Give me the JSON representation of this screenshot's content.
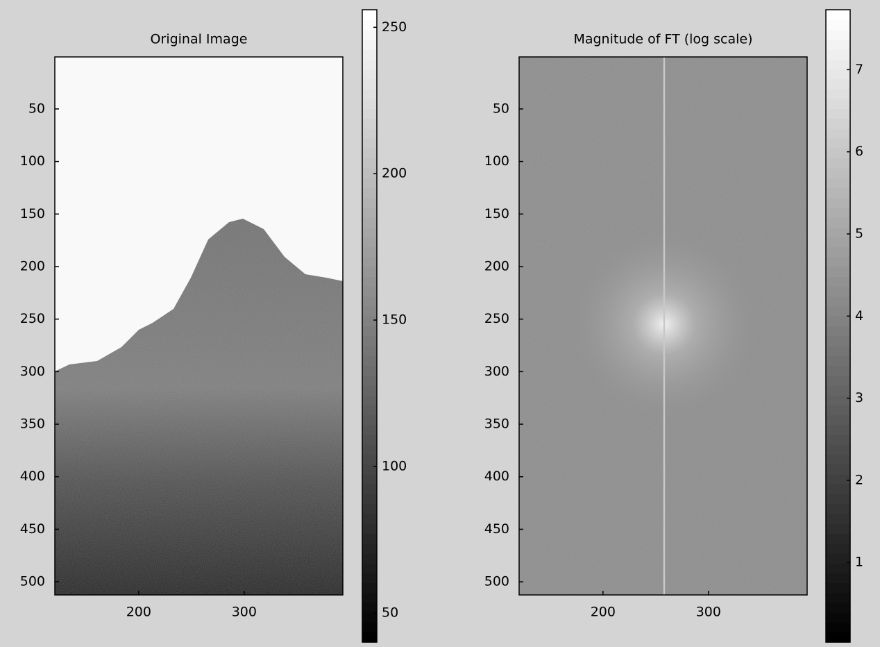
{
  "chart_data": [
    {
      "type": "image",
      "title": "Original Image",
      "xlim": [
        120.5,
        393.5
      ],
      "xticks": [
        200,
        300
      ],
      "ylim": [
        512.5,
        0.5
      ],
      "yticks": [
        50,
        100,
        150,
        200,
        250,
        300,
        350,
        400,
        450,
        500
      ],
      "colorbar": {
        "ylim": [
          40,
          256
        ],
        "yticks": [
          50,
          100,
          150,
          200,
          250
        ]
      }
    },
    {
      "type": "image",
      "title": "Magnitude of FT (log scale)",
      "xlim": [
        120.5,
        393.5
      ],
      "xticks": [
        200,
        300
      ],
      "ylim": [
        512.5,
        0.5
      ],
      "yticks": [
        50,
        100,
        150,
        200,
        250,
        300,
        350,
        400,
        450,
        500
      ],
      "colorbar": {
        "ylim": [
          0.03,
          7.73
        ],
        "yticks": [
          1,
          2,
          3,
          4,
          5,
          6,
          7
        ]
      }
    }
  ]
}
